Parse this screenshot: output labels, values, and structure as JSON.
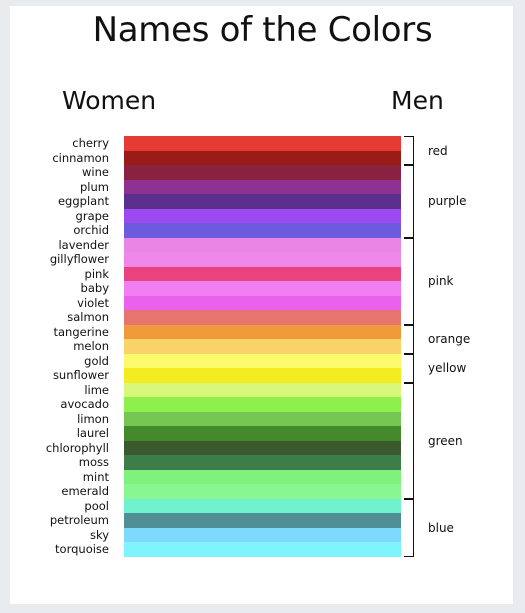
{
  "title": "Names of the Colors",
  "women_heading": "Women",
  "men_heading": "Men",
  "women_colors": [
    {
      "label": "cherry",
      "color": "#e53b34"
    },
    {
      "label": "cinnamon",
      "color": "#9b1c17"
    },
    {
      "label": "wine",
      "color": "#8b2140"
    },
    {
      "label": "plum",
      "color": "#8e3190"
    },
    {
      "label": "eggplant",
      "color": "#5b2f8e"
    },
    {
      "label": "grape",
      "color": "#9a4af0"
    },
    {
      "label": "orchid",
      "color": "#6c5bdc"
    },
    {
      "label": "lavender",
      "color": "#e985e6"
    },
    {
      "label": "gillyflower",
      "color": "#ee87e8"
    },
    {
      "label": "pink",
      "color": "#e8437f"
    },
    {
      "label": "baby",
      "color": "#f17ff2"
    },
    {
      "label": "violet",
      "color": "#ea62ec"
    },
    {
      "label": "salmon",
      "color": "#e87470"
    },
    {
      "label": "tangerine",
      "color": "#ef9a3a"
    },
    {
      "label": "melon",
      "color": "#fbd16a"
    },
    {
      "label": "gold",
      "color": "#fbfb6c"
    },
    {
      "label": "sunflower",
      "color": "#f4ec22"
    },
    {
      "label": "lime",
      "color": "#d9f77a"
    },
    {
      "label": "avocado",
      "color": "#8ef04a"
    },
    {
      "label": "limon",
      "color": "#76c653"
    },
    {
      "label": "laurel",
      "color": "#45892d"
    },
    {
      "label": "chlorophyll",
      "color": "#3a5a2d"
    },
    {
      "label": "moss",
      "color": "#3d7d4a"
    },
    {
      "label": "mint",
      "color": "#7ef27b"
    },
    {
      "label": "emerald",
      "color": "#88f791"
    },
    {
      "label": "pool",
      "color": "#6ff2cd"
    },
    {
      "label": "petroleum",
      "color": "#4f8f95"
    },
    {
      "label": "sky",
      "color": "#7ddafd"
    },
    {
      "label": "torquoise",
      "color": "#7ff5fb"
    }
  ],
  "men_groups": [
    {
      "label": "red",
      "start": 0,
      "end": 1
    },
    {
      "label": "purple",
      "start": 2,
      "end": 6
    },
    {
      "label": "pink",
      "start": 7,
      "end": 12
    },
    {
      "label": "orange",
      "start": 13,
      "end": 14
    },
    {
      "label": "yellow",
      "start": 15,
      "end": 16
    },
    {
      "label": "green",
      "start": 17,
      "end": 24
    },
    {
      "label": "blue",
      "start": 25,
      "end": 28
    }
  ]
}
